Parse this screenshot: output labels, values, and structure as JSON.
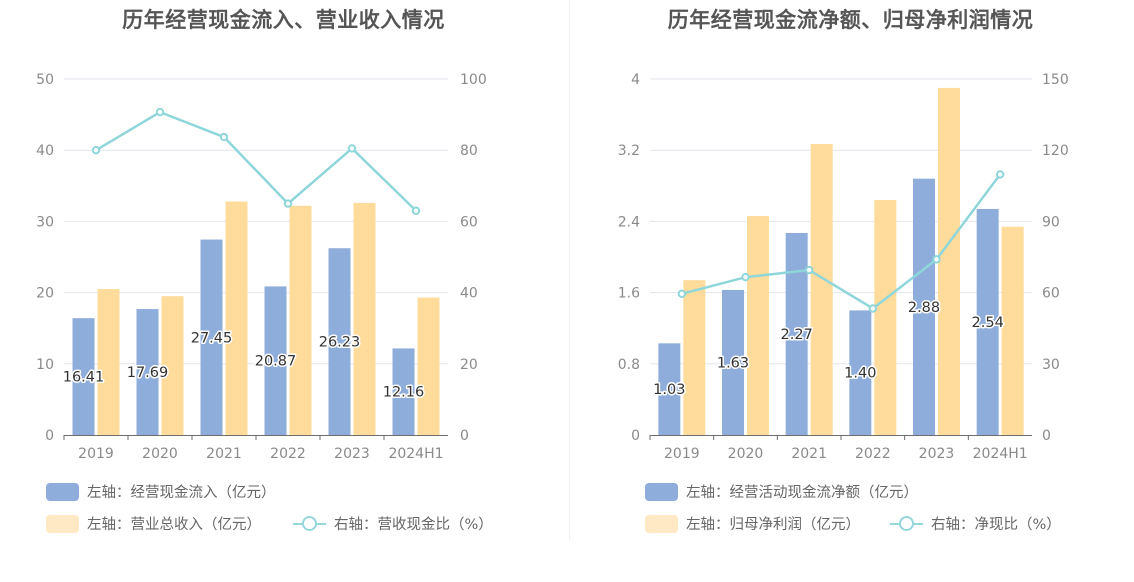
{
  "chart_data": [
    {
      "type": "bar",
      "title": "历年经营现金流入、营业收入情况",
      "categories": [
        "2019",
        "2020",
        "2021",
        "2022",
        "2023",
        "2024H1"
      ],
      "left_axis": {
        "ylim": [
          0,
          50
        ],
        "ticks": [
          "0",
          "10",
          "20",
          "30",
          "40",
          "50"
        ]
      },
      "right_axis": {
        "ylim": [
          0,
          100
        ],
        "ticks": [
          "0",
          "20",
          "40",
          "60",
          "80",
          "100"
        ]
      },
      "series": [
        {
          "name": "左轴：经营现金流入（亿元）",
          "type": "bar",
          "axis": "left",
          "color": "#8eaddb",
          "values": [
            16.41,
            17.69,
            27.45,
            20.87,
            26.23,
            12.16
          ],
          "labels": [
            "16.41",
            "17.69",
            "27.45",
            "20.87",
            "26.23",
            "12.16"
          ]
        },
        {
          "name": "左轴：营业总收入（亿元）",
          "type": "bar",
          "axis": "left",
          "color": "#ffdb9c",
          "values": [
            20.5,
            19.5,
            32.8,
            32.2,
            32.6,
            19.3
          ]
        },
        {
          "name": "右轴：营收现金比（%）",
          "type": "line",
          "axis": "right",
          "color": "#8fd6da",
          "values": [
            80.0,
            90.7,
            83.7,
            65.0,
            80.5,
            63.0
          ]
        }
      ],
      "legend": {
        "placement": "bottom-left"
      },
      "grid": true
    },
    {
      "type": "bar",
      "title": "历年经营现金流净额、归母净利润情况",
      "categories": [
        "2019",
        "2020",
        "2021",
        "2022",
        "2023",
        "2024H1"
      ],
      "left_axis": {
        "ylim": [
          0,
          4
        ],
        "ticks": [
          "0",
          "0.8",
          "1.6",
          "2.4",
          "3.2",
          "4"
        ]
      },
      "right_axis": {
        "ylim": [
          0,
          150
        ],
        "ticks": [
          "0",
          "30",
          "60",
          "90",
          "120",
          "150"
        ]
      },
      "series": [
        {
          "name": "左轴：经营活动现金流净额（亿元）",
          "type": "bar",
          "axis": "left",
          "color": "#8eaddb",
          "values": [
            1.03,
            1.63,
            2.27,
            1.4,
            2.88,
            2.54
          ],
          "labels": [
            "1.03",
            "1.63",
            "2.27",
            "1.40",
            "2.88",
            "2.54"
          ]
        },
        {
          "name": "左轴：归母净利润（亿元）",
          "type": "bar",
          "axis": "left",
          "color": "#ffdb9c",
          "values": [
            1.74,
            2.46,
            3.27,
            2.64,
            3.9,
            2.34
          ]
        },
        {
          "name": "右轴：净现比（%）",
          "type": "line",
          "axis": "right",
          "color": "#8fd6da",
          "values": [
            59.5,
            66.5,
            69.5,
            53.3,
            74.0,
            109.8
          ]
        }
      ],
      "legend": {
        "placement": "bottom-left"
      },
      "grid": true
    }
  ]
}
